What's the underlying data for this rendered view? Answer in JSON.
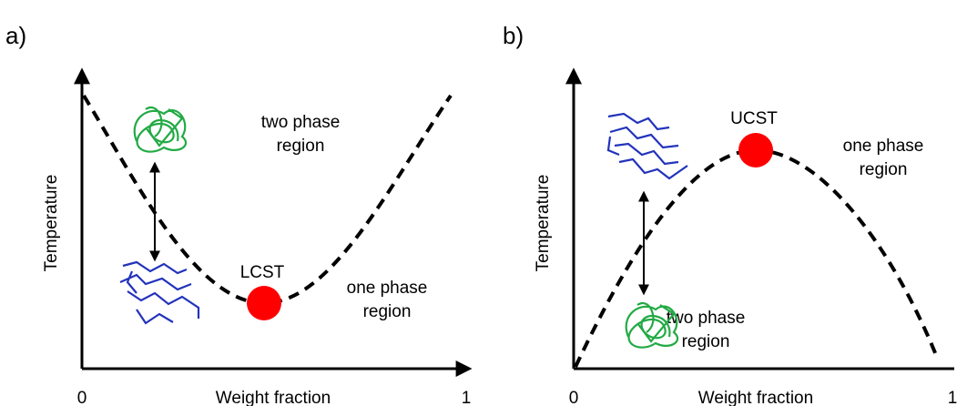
{
  "panels": [
    {
      "label": "a)",
      "y_label": "Temperature",
      "x_label": "Weight fraction",
      "x_start": "0",
      "x_end": "1",
      "point_label": "LCST",
      "upper_region": [
        "two phase",
        "region"
      ],
      "lower_region": [
        "one phase",
        "region"
      ]
    },
    {
      "label": "b)",
      "y_label": "Temperature",
      "x_label": "Weight fraction",
      "x_start": "0",
      "x_end": "1",
      "point_label": "UCST",
      "upper_region": [
        "one phase",
        "region"
      ],
      "lower_region": [
        "two phase",
        "region"
      ]
    }
  ]
}
